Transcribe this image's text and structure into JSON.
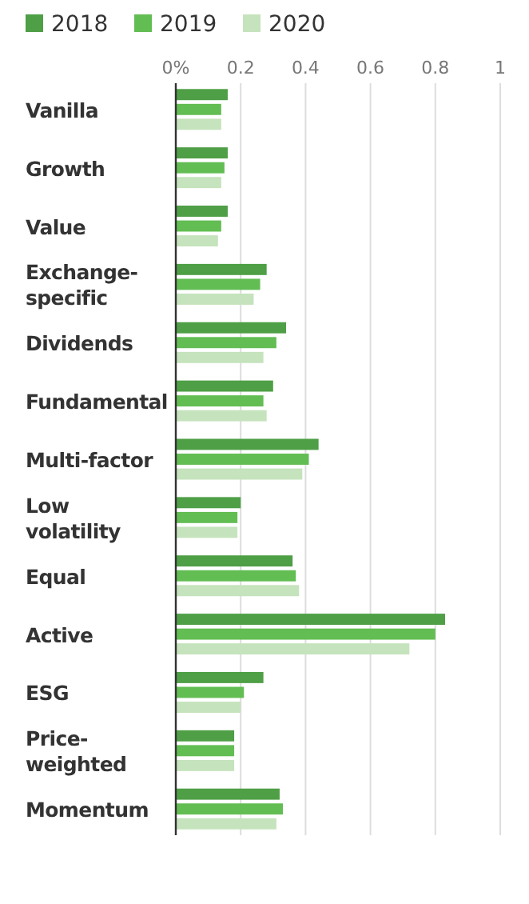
{
  "chart_data": {
    "type": "bar",
    "orientation": "horizontal",
    "categories": [
      "Vanilla",
      "Growth",
      "Value",
      "Exchange-specific",
      "Dividends",
      "Fundamental",
      "Multi-factor",
      "Low volatility",
      "Equal",
      "Active",
      "ESG",
      "Price-weighted",
      "Momentum"
    ],
    "series": [
      {
        "name": "2018",
        "color": "#4e9f45",
        "values": [
          0.16,
          0.16,
          0.16,
          0.28,
          0.34,
          0.3,
          0.44,
          0.2,
          0.36,
          0.83,
          0.27,
          0.18,
          0.32
        ]
      },
      {
        "name": "2019",
        "color": "#62bd52",
        "values": [
          0.14,
          0.15,
          0.14,
          0.26,
          0.31,
          0.27,
          0.41,
          0.19,
          0.37,
          0.8,
          0.21,
          0.18,
          0.33
        ]
      },
      {
        "name": "2020",
        "color": "#c5e3bc",
        "values": [
          0.14,
          0.14,
          0.13,
          0.24,
          0.27,
          0.28,
          0.39,
          0.19,
          0.38,
          0.72,
          0.2,
          0.18,
          0.31
        ]
      }
    ],
    "xlim": [
      0,
      1
    ],
    "xticks": [
      {
        "value": 0,
        "label": "0%"
      },
      0.2,
      0.4,
      0.6,
      0.8,
      1
    ],
    "grid": "x",
    "legend": "top left"
  }
}
